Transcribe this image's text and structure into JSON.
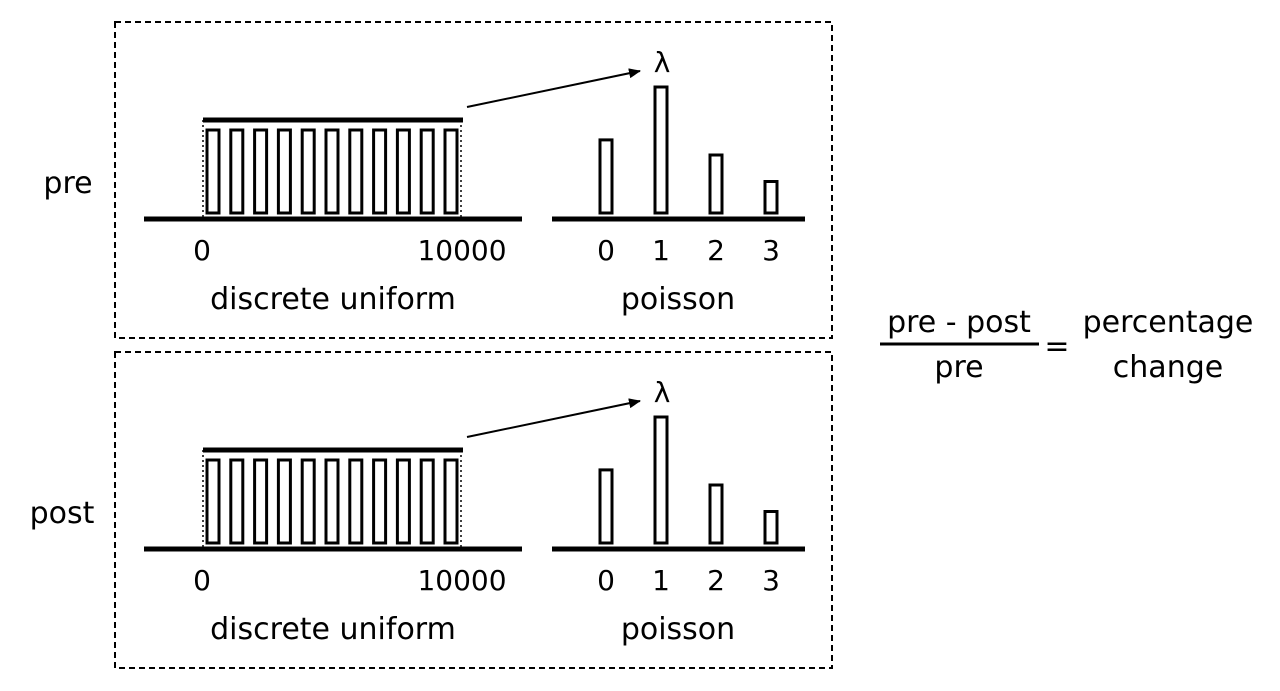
{
  "panels": [
    {
      "row_label": "pre",
      "uniform": {
        "tick_start": "0",
        "tick_end": "10000",
        "label": "discrete uniform",
        "bar_count": 11
      },
      "poisson": {
        "ticks": [
          "0",
          "1",
          "2",
          "3"
        ],
        "label": "poisson",
        "heights": [
          0.58,
          1.0,
          0.46,
          0.25
        ]
      },
      "lambda": "λ"
    },
    {
      "row_label": "post",
      "uniform": {
        "tick_start": "0",
        "tick_end": "10000",
        "label": "discrete uniform",
        "bar_count": 11
      },
      "poisson": {
        "ticks": [
          "0",
          "1",
          "2",
          "3"
        ],
        "label": "poisson",
        "heights": [
          0.58,
          1.0,
          0.46,
          0.25
        ]
      },
      "lambda": "λ"
    }
  ],
  "formula": {
    "numerator": "pre - post",
    "denominator": "pre",
    "equals": "=",
    "result_line1": "percentage",
    "result_line2": "change"
  },
  "colors": {
    "ink": "#000000",
    "background": "#ffffff"
  }
}
